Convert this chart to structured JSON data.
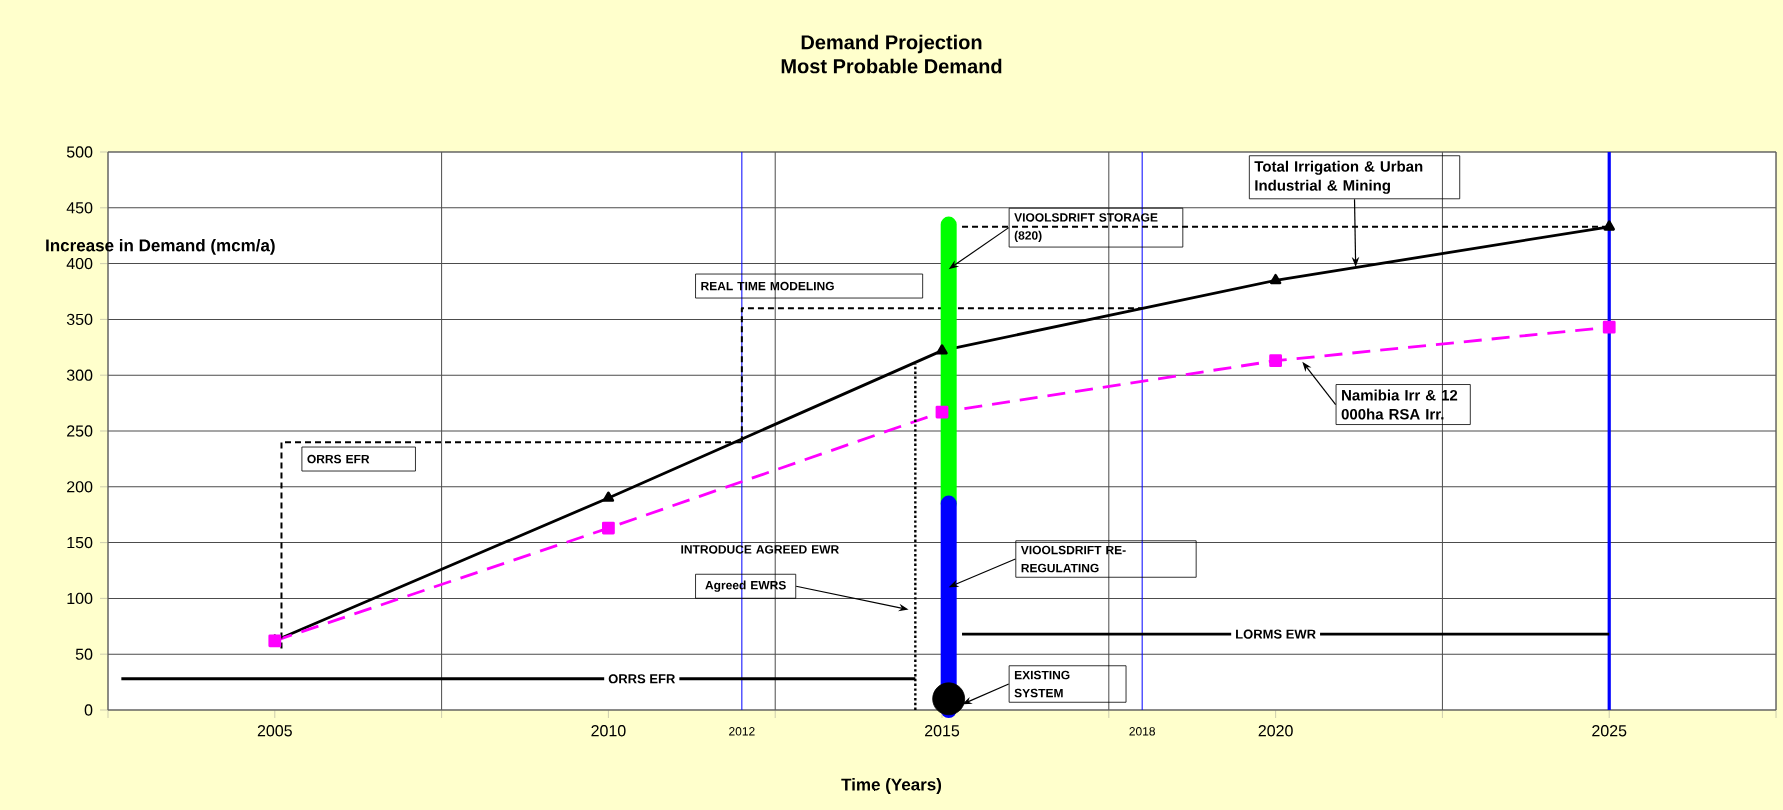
{
  "chart_data": {
    "type": "line",
    "title": "Demand Projection",
    "subtitle": "Most Probable Demand",
    "xlabel": "Time (Years)",
    "ylabel": "Increase in Demand (mcm/a)",
    "xlim": [
      2002.5,
      2027.5
    ],
    "xticks": [
      {
        "value": 2002.5,
        "label": null
      },
      2005,
      {
        "value": 2007.5,
        "label": null
      },
      2010,
      {
        "value": 2012.5,
        "label": null
      },
      2015,
      {
        "value": 2017.5,
        "label": null
      },
      2020,
      {
        "value": 2022.5,
        "label": null
      },
      2025,
      {
        "value": 2027.5,
        "label": null
      }
    ],
    "ylim": [
      0,
      500
    ],
    "yticks": [
      0,
      50,
      100,
      150,
      200,
      250,
      300,
      350,
      400,
      450,
      500
    ],
    "grid": true,
    "series": [
      {
        "name": "Total Irrigation & Urban Industrial & Mining",
        "color": "#000000",
        "x": [
          2005,
          2010,
          2015,
          2020,
          2025
        ],
        "values": [
          62,
          190,
          322,
          385,
          433
        ],
        "marker": "triangle",
        "line_style": "solid"
      },
      {
        "name": "Namibia Irr & 12 000ha RSA Irr.",
        "color": "#ff00ff",
        "x": [
          2005,
          2010,
          2015,
          2020,
          2025
        ],
        "values": [
          62,
          163,
          267,
          313,
          343
        ],
        "marker": "square",
        "line_style": "dashed"
      },
      {
        "color": "#000000",
        "x": [
          2005.1,
          2005.1,
          2012.0
        ],
        "values": [
          55,
          240,
          240
        ],
        "line_style": "dashed"
      },
      {
        "color": "#000000",
        "x": [
          2012.0,
          2012.0,
          2018.0
        ],
        "values": [
          240,
          360,
          360
        ],
        "line_style": "dashed"
      },
      {
        "color": "#000000",
        "x": [
          2015.3,
          2025
        ],
        "values": [
          433,
          433
        ],
        "line_style": "dashed"
      },
      {
        "color": "#000000",
        "x": [
          2014.6,
          2014.6
        ],
        "values": [
          0,
          310
        ],
        "line_style": "dotted"
      },
      {
        "color": "#000000",
        "x": [
          2014.6,
          2002.7
        ],
        "values": [
          28,
          28
        ],
        "line_style": "solid"
      },
      {
        "color": "#000000",
        "x": [
          2015.3,
          2025
        ],
        "values": [
          68,
          68
        ],
        "line_style": "solid"
      },
      {
        "type": "bar",
        "color": "#00ff00",
        "x": [
          2015.1
        ],
        "base": [
          185
        ],
        "values": [
          250
        ]
      },
      {
        "type": "bar",
        "color": "#0000ff",
        "x": [
          2015.1
        ],
        "base": [
          0
        ],
        "values": [
          185
        ]
      },
      {
        "type": "scatter",
        "color": "#000000",
        "x": [
          2015.1
        ],
        "values": [
          10
        ],
        "marker": "circle"
      }
    ],
    "ref_lines": [
      {
        "axis": "x",
        "value": 2012,
        "label": "2012",
        "color": "#0000ff"
      },
      {
        "axis": "x",
        "value": 2018,
        "label": "2018",
        "color": "#0000ff"
      },
      {
        "axis": "x",
        "value": 2025,
        "color": "#0000ff"
      }
    ],
    "annotations": [
      "ORRS EFR",
      "REAL TIME MODELING",
      {
        "text": "VIOOLSDRIFT STORAGE (820)",
        "x": 2015.1,
        "y": 395
      },
      "INTRODUCE AGREED EWR",
      "Agreed EWRS",
      {
        "text": "VIOOLSDRIFT RE-REGULATING",
        "x": 2015.1,
        "y": 110
      },
      {
        "text": "EXISTING SYSTEM",
        "x": 2015.3,
        "y": 5
      },
      {
        "text": "ORRS EFR",
        "x": 2010.5,
        "y": 28
      },
      {
        "text": "LORMS EWR",
        "x": 2020,
        "y": 68
      }
    ]
  }
}
